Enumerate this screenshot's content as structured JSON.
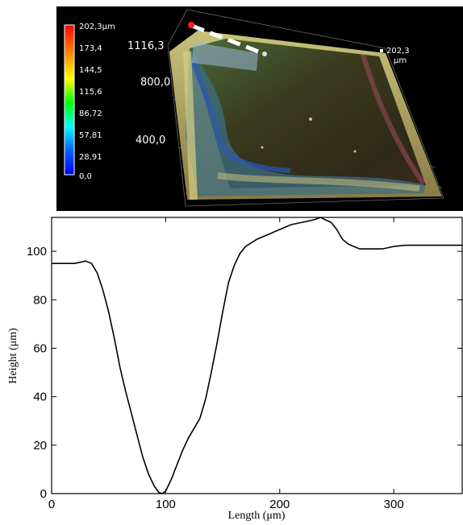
{
  "render_3d": {
    "colorbar": {
      "labels": [
        "202,3µm",
        "173,4",
        "144,5",
        "115,6",
        "86,72",
        "57,81",
        "28,91",
        "0,0"
      ],
      "colors": [
        "#ff0000",
        "#ff8000",
        "#ffff00",
        "#00ff00",
        "#00ffff",
        "#0040ff",
        "#0000ff"
      ]
    },
    "axis_labels": {
      "y_top": "1116,3",
      "y_mid": "800,0",
      "y_low": "400,0",
      "z_max": "202,3",
      "z_unit": "µm"
    }
  },
  "chart_data": {
    "type": "line",
    "xlabel": "Length (μm)",
    "ylabel": "Height (μm)",
    "xlim": [
      0,
      360
    ],
    "ylim": [
      0,
      114
    ],
    "xticks": [
      0,
      100,
      200,
      300
    ],
    "yticks": [
      0,
      20,
      40,
      60,
      80,
      100
    ],
    "x_tick_labels": [
      "0",
      "100",
      "200",
      "300"
    ],
    "y_tick_labels": [
      "0",
      "20",
      "40",
      "60",
      "80",
      "100"
    ],
    "series": [
      {
        "color": "#000000",
        "x": [
          0,
          10,
          20,
          30,
          35,
          40,
          45,
          50,
          55,
          60,
          65,
          70,
          75,
          80,
          85,
          90,
          94,
          97,
          100,
          105,
          110,
          115,
          120,
          125,
          130,
          135,
          140,
          145,
          150,
          155,
          160,
          165,
          170,
          180,
          190,
          200,
          210,
          220,
          230,
          236,
          240,
          245,
          250,
          255,
          260,
          265,
          270,
          280,
          290,
          295,
          300,
          310,
          320,
          330,
          340,
          350,
          360
        ],
        "y": [
          95,
          95,
          95,
          96,
          95,
          91,
          84,
          75,
          64,
          52,
          42,
          33,
          24,
          15,
          8,
          3,
          0.5,
          0,
          1,
          6,
          12,
          18,
          23,
          27,
          31,
          39,
          50,
          62,
          75,
          87,
          94,
          99,
          102,
          105,
          107,
          109,
          111,
          112,
          113,
          114,
          113,
          112,
          109,
          105,
          103,
          102,
          101,
          101,
          101,
          101.5,
          102,
          102.5,
          102.5,
          102.5,
          102.5,
          102.5,
          102.5
        ]
      }
    ]
  }
}
